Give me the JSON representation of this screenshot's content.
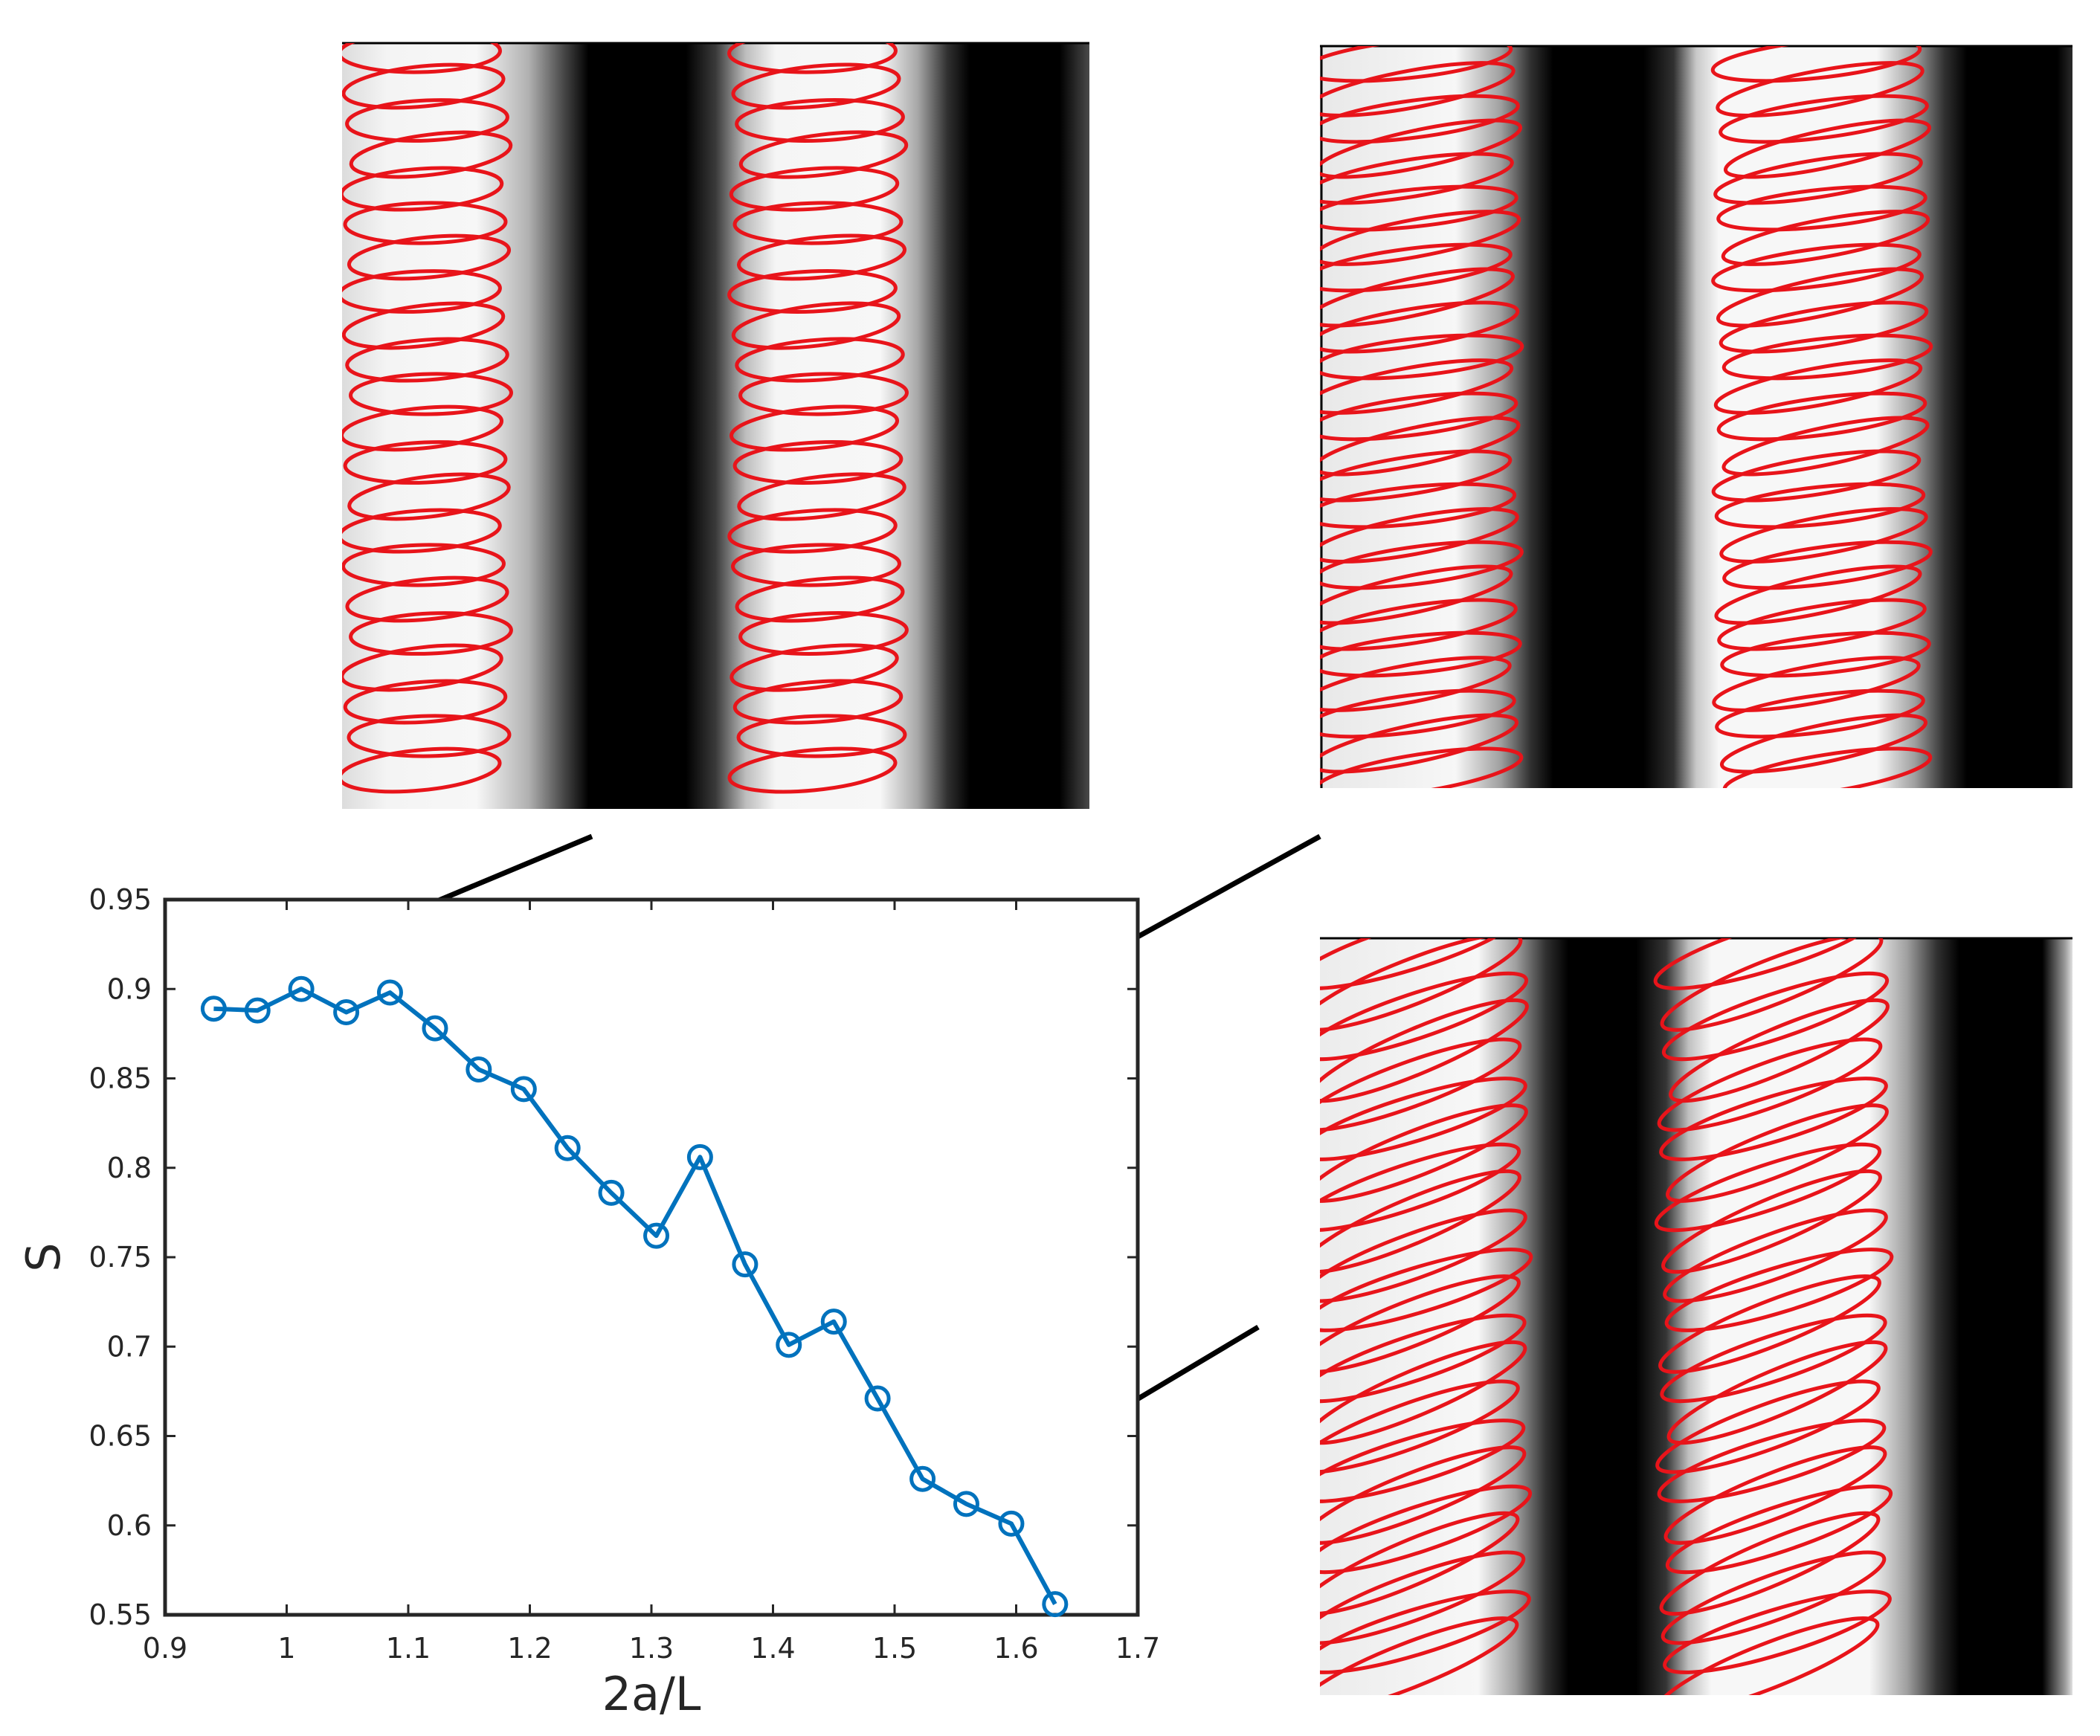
{
  "chart_data": {
    "type": "line",
    "xlabel": "2a/L",
    "ylabel": "S",
    "xlim": [
      0.9,
      1.7
    ],
    "ylim": [
      0.55,
      0.95
    ],
    "x_ticks": [
      "0.9",
      "1",
      "1.1",
      "1.2",
      "1.3",
      "1.4",
      "1.5",
      "1.6",
      "1.7"
    ],
    "y_ticks": [
      "0.55",
      "0.6",
      "0.65",
      "0.7",
      "0.75",
      "0.8",
      "0.85",
      "0.9",
      "0.95"
    ],
    "grid": false,
    "series": [
      {
        "color": "#0072BD",
        "marker": "circle",
        "points": [
          [
            0.94,
            0.889
          ],
          [
            0.976,
            0.888
          ],
          [
            1.012,
            0.9
          ],
          [
            1.049,
            0.887
          ],
          [
            1.085,
            0.898
          ],
          [
            1.122,
            0.878
          ],
          [
            1.158,
            0.855
          ],
          [
            1.195,
            0.844
          ],
          [
            1.231,
            0.811
          ],
          [
            1.267,
            0.786
          ],
          [
            1.304,
            0.762
          ],
          [
            1.34,
            0.806
          ],
          [
            1.377,
            0.746
          ],
          [
            1.413,
            0.701
          ],
          [
            1.45,
            0.714
          ],
          [
            1.486,
            0.671
          ],
          [
            1.523,
            0.626
          ],
          [
            1.559,
            0.612
          ],
          [
            1.596,
            0.601
          ],
          [
            1.632,
            0.556
          ]
        ]
      }
    ]
  },
  "panels": {
    "top_left": {
      "tilt_deg": 4,
      "ellipse_color": "#E8141A"
    },
    "top_right": {
      "tilt_deg": 9,
      "ellipse_color": "#E8141A"
    },
    "bottom_right": {
      "tilt_deg": 20,
      "ellipse_color": "#E8141A"
    }
  }
}
